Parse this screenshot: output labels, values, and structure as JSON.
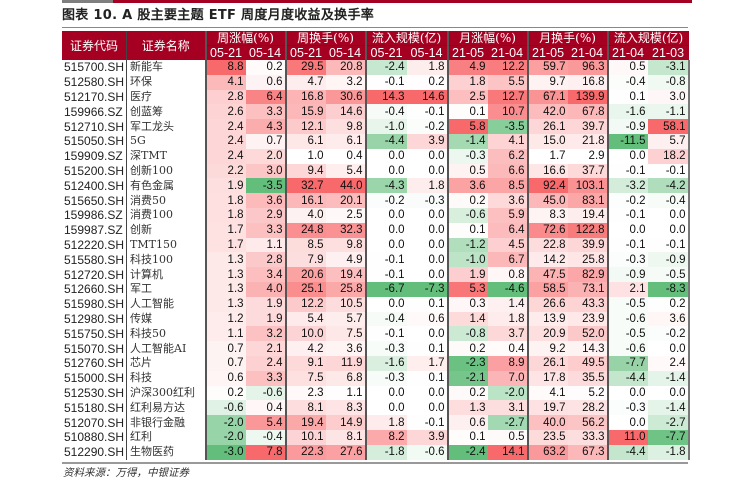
{
  "title": "图表 10. A 股主要主题 ETF 周度月度收益及换手率",
  "source": "资料来源：万得，中银证券",
  "colors": {
    "header_bg": "#a50021",
    "positive": "#f8696b",
    "negative": "#63be7b",
    "neutral": "#ffffff"
  },
  "headers": {
    "code": "证券代码",
    "name": "证券名称",
    "groups": [
      {
        "label": "周涨幅(%)",
        "cols": [
          "05-21",
          "05-14"
        ]
      },
      {
        "label": "周换手(%)",
        "cols": [
          "05-21",
          "05-14"
        ]
      },
      {
        "label": "流入规模(亿)",
        "cols": [
          "05-21",
          "05-14"
        ]
      },
      {
        "label": "月涨幅(%)",
        "cols": [
          "21-05",
          "21-04"
        ]
      },
      {
        "label": "月换手(%)",
        "cols": [
          "21-05",
          "21-04"
        ]
      },
      {
        "label": "流入规模(亿)",
        "cols": [
          "21-04",
          "21-03"
        ]
      }
    ]
  },
  "rows": [
    {
      "code": "515700.SH",
      "name": "新能车",
      "values": [
        "8.8",
        "0.2",
        "29.5",
        "20.8",
        "-2.4",
        "1.8",
        "4.9",
        "12.2",
        "59.7",
        "96.3",
        "0.5",
        "-3.1"
      ]
    },
    {
      "code": "512580.SH",
      "name": "环保",
      "values": [
        "4.1",
        "0.6",
        "4.7",
        "3.2",
        "-0.1",
        "0.2",
        "1.8",
        "5.5",
        "9.7",
        "16.8",
        "-0.4",
        "-0.8"
      ]
    },
    {
      "code": "512170.SH",
      "name": "医疗",
      "values": [
        "2.8",
        "6.4",
        "16.8",
        "30.6",
        "14.3",
        "14.6",
        "2.5",
        "12.7",
        "67.1",
        "139.9",
        "0.1",
        "3.0"
      ]
    },
    {
      "code": "159966.SZ",
      "name": "创蓝筹",
      "values": [
        "2.6",
        "3.3",
        "15.9",
        "14.6",
        "-0.4",
        "-0.1",
        "0.1",
        "10.7",
        "42.0",
        "67.8",
        "-1.6",
        "-1.1"
      ]
    },
    {
      "code": "512710.SH",
      "name": "军工龙头",
      "values": [
        "2.4",
        "4.3",
        "12.1",
        "9.8",
        "-1.0",
        "-0.2",
        "5.8",
        "-3.5",
        "26.1",
        "39.7",
        "-0.9",
        "58.1"
      ]
    },
    {
      "code": "515050.SH",
      "name": "5G",
      "values": [
        "2.4",
        "0.7",
        "6.1",
        "6.1",
        "-4.4",
        "3.9",
        "-1.4",
        "4.1",
        "15.0",
        "21.8",
        "-11.5",
        "5.7"
      ]
    },
    {
      "code": "159909.SZ",
      "name": "深TMT",
      "values": [
        "2.4",
        "2.0",
        "1.0",
        "0.4",
        "0.0",
        "0.0",
        "-0.3",
        "6.2",
        "1.7",
        "2.9",
        "0.0",
        "18.2"
      ]
    },
    {
      "code": "515200.SH",
      "name": "创新100",
      "values": [
        "2.2",
        "3.0",
        "9.4",
        "5.4",
        "0.0",
        "0.0",
        "0.5",
        "6.6",
        "16.6",
        "37.7",
        "-0.1",
        "-0.1"
      ]
    },
    {
      "code": "512400.SH",
      "name": "有色金属",
      "values": [
        "1.9",
        "-3.5",
        "32.7",
        "44.0",
        "-4.3",
        "1.8",
        "3.6",
        "8.5",
        "92.4",
        "103.1",
        "-3.2",
        "-4.2"
      ]
    },
    {
      "code": "515650.SH",
      "name": "消费50",
      "values": [
        "1.8",
        "3.6",
        "16.1",
        "20.1",
        "-0.2",
        "-0.3",
        "0.2",
        "3.6",
        "45.0",
        "83.1",
        "-0.2",
        "-0.4"
      ]
    },
    {
      "code": "159986.SZ",
      "name": "消费100",
      "values": [
        "1.8",
        "2.9",
        "4.0",
        "2.5",
        "0.0",
        "0.0",
        "-0.6",
        "5.9",
        "8.3",
        "19.4",
        "-0.1",
        "0.0"
      ]
    },
    {
      "code": "159987.SZ",
      "name": "创新",
      "values": [
        "1.7",
        "3.3",
        "24.8",
        "32.3",
        "0.0",
        "0.0",
        "0.1",
        "6.4",
        "72.6",
        "122.8",
        "0.0",
        "0.0"
      ]
    },
    {
      "code": "512220.SH",
      "name": "TMT150",
      "values": [
        "1.7",
        "1.1",
        "8.5",
        "9.8",
        "0.0",
        "0.0",
        "-1.2",
        "4.5",
        "22.8",
        "39.9",
        "-0.1",
        "-0.1"
      ]
    },
    {
      "code": "515580.SH",
      "name": "科技100",
      "values": [
        "1.3",
        "2.8",
        "7.9",
        "4.9",
        "-0.1",
        "0.0",
        "-1.0",
        "6.7",
        "14.2",
        "25.8",
        "-0.3",
        "-0.9"
      ]
    },
    {
      "code": "512720.SH",
      "name": "计算机",
      "values": [
        "1.3",
        "3.4",
        "20.6",
        "19.4",
        "-0.1",
        "0.0",
        "1.9",
        "0.8",
        "47.5",
        "82.9",
        "-0.9",
        "-0.5"
      ]
    },
    {
      "code": "512660.SH",
      "name": "军工",
      "values": [
        "1.3",
        "4.0",
        "25.1",
        "25.8",
        "-6.7",
        "-7.3",
        "5.3",
        "-4.6",
        "58.5",
        "73.1",
        "2.1",
        "-8.3"
      ]
    },
    {
      "code": "515980.SH",
      "name": "人工智能",
      "values": [
        "1.3",
        "1.9",
        "12.2",
        "10.5",
        "0.0",
        "0.1",
        "0.3",
        "1.4",
        "26.6",
        "43.3",
        "-0.5",
        "0.2"
      ]
    },
    {
      "code": "512980.SH",
      "name": "传媒",
      "values": [
        "1.2",
        "1.9",
        "5.4",
        "5.7",
        "-0.4",
        "0.6",
        "1.4",
        "1.8",
        "13.9",
        "23.9",
        "-0.6",
        "3.6"
      ]
    },
    {
      "code": "515750.SH",
      "name": "科技50",
      "values": [
        "1.1",
        "3.2",
        "10.0",
        "7.5",
        "-0.1",
        "0.0",
        "-0.8",
        "3.7",
        "20.9",
        "52.0",
        "-0.5",
        "-0.2"
      ]
    },
    {
      "code": "515070.SH",
      "name": "人工智能AI",
      "values": [
        "0.7",
        "2.1",
        "4.2",
        "3.6",
        "-0.3",
        "0.1",
        "0.2",
        "0.4",
        "9.2",
        "14.3",
        "-0.6",
        "0.0"
      ]
    },
    {
      "code": "512760.SH",
      "name": "芯片",
      "values": [
        "0.7",
        "2.4",
        "9.1",
        "11.9",
        "-1.6",
        "1.7",
        "-2.3",
        "8.9",
        "26.1",
        "49.5",
        "-7.7",
        "2.4"
      ]
    },
    {
      "code": "515000.SH",
      "name": "科技",
      "values": [
        "0.6",
        "3.3",
        "7.5",
        "6.8",
        "-0.3",
        "0.1",
        "-2.1",
        "7.0",
        "17.8",
        "35.5",
        "-4.4",
        "-1.4"
      ]
    },
    {
      "code": "512530.SH",
      "name": "沪深300红利",
      "values": [
        "0.2",
        "-0.6",
        "2.3",
        "1.1",
        "0.0",
        "0.0",
        "0.2",
        "-2.0",
        "4.1",
        "5.2",
        "0.0",
        "0.0"
      ]
    },
    {
      "code": "515180.SH",
      "name": "红利易方达",
      "values": [
        "-0.6",
        "0.4",
        "8.1",
        "8.3",
        "0.0",
        "0.0",
        "1.3",
        "3.1",
        "19.7",
        "28.2",
        "-0.3",
        "-1.4"
      ]
    },
    {
      "code": "512070.SH",
      "name": "非银行金融",
      "values": [
        "-2.0",
        "5.4",
        "19.4",
        "14.9",
        "1.8",
        "-0.1",
        "0.6",
        "-2.7",
        "40.0",
        "56.2",
        "0.0",
        "-2.7"
      ]
    },
    {
      "code": "510880.SH",
      "name": "红利",
      "values": [
        "-2.0",
        "-0.4",
        "10.1",
        "8.1",
        "8.2",
        "3.9",
        "0.1",
        "0.5",
        "23.5",
        "33.3",
        "11.0",
        "-7.7"
      ]
    },
    {
      "code": "512290.SH",
      "name": "生物医药",
      "values": [
        "-3.0",
        "7.8",
        "22.3",
        "27.6",
        "-1.8",
        "-0.6",
        "-2.4",
        "14.1",
        "63.2",
        "67.3",
        "-4.4",
        "-1.8"
      ]
    }
  ]
}
